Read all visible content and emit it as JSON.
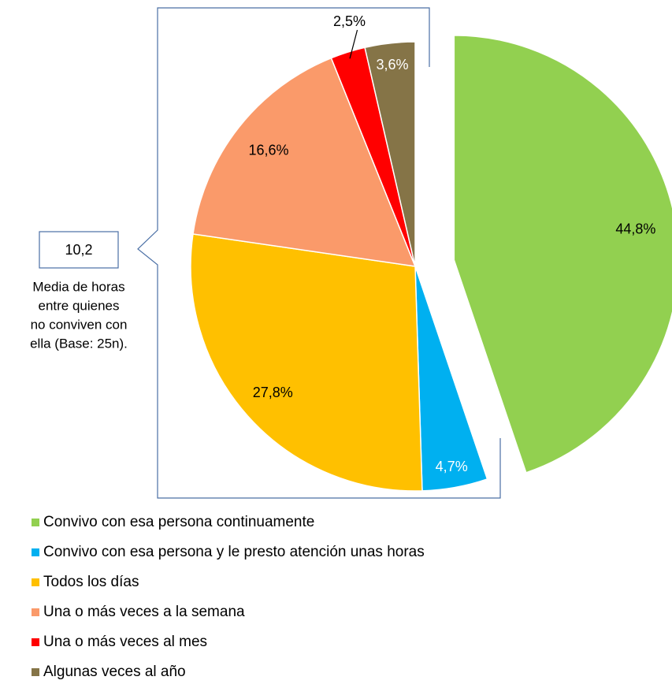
{
  "chart_data": {
    "type": "pie",
    "categories": [
      "Convivo con esa persona continuamente",
      "Convivo con esa persona y le presto atención unas horas",
      "Todos los días",
      "Una o más veces a la semana",
      "Una o más veces al mes",
      "Algunas veces al año"
    ],
    "values": [
      44.8,
      4.7,
      27.8,
      16.6,
      2.5,
      3.6
    ],
    "value_labels": [
      "44,8%",
      "4,7%",
      "27,8%",
      "16,6%",
      "2,5%",
      "3,6%"
    ],
    "colors": [
      "#92d050",
      "#00b0f0",
      "#ffc000",
      "#fa9a6a",
      "#ff0000",
      "#857447"
    ],
    "annotation": {
      "value": "10,2",
      "lines": [
        "Media de horas",
        "entre quienes",
        "no conviven con",
        "ella (Base: 25n)."
      ]
    }
  }
}
